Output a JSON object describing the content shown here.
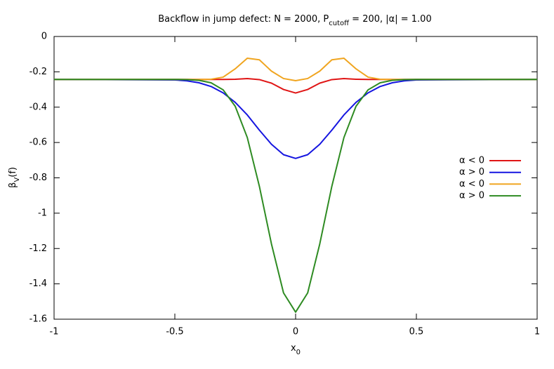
{
  "chart_data": {
    "type": "line",
    "title": [
      {
        "text": "Backflow in jump defect: N = 2000, P"
      },
      {
        "text": "cutoff",
        "sub": true
      },
      {
        "text": " = 200, |α| = 1.00"
      }
    ],
    "xlabel": [
      {
        "text": "x"
      },
      {
        "text": "0",
        "sub": true
      }
    ],
    "ylabel": [
      {
        "text": "β"
      },
      {
        "text": "V",
        "sub": true
      },
      {
        "text": "(f)"
      }
    ],
    "x": [
      -1,
      -0.5,
      -0.45,
      -0.4,
      -0.35,
      -0.3,
      -0.25,
      -0.2,
      -0.15,
      -0.1,
      -0.05,
      0,
      0.05,
      0.1,
      0.15,
      0.2,
      0.25,
      0.3,
      0.35,
      0.4,
      0.45,
      0.5,
      1
    ],
    "series": [
      {
        "name": "α < 0",
        "color": "#e01515",
        "values": [
          -0.243,
          -0.243,
          -0.243,
          -0.243,
          -0.243,
          -0.243,
          -0.242,
          -0.238,
          -0.244,
          -0.264,
          -0.3,
          -0.32,
          -0.3,
          -0.264,
          -0.244,
          -0.238,
          -0.242,
          -0.243,
          -0.243,
          -0.243,
          -0.243,
          -0.243,
          -0.243
        ]
      },
      {
        "name": "α > 0",
        "color": "#1515e0",
        "values": [
          -0.243,
          -0.246,
          -0.251,
          -0.262,
          -0.283,
          -0.319,
          -0.373,
          -0.444,
          -0.53,
          -0.61,
          -0.669,
          -0.69,
          -0.669,
          -0.61,
          -0.53,
          -0.444,
          -0.373,
          -0.319,
          -0.283,
          -0.262,
          -0.251,
          -0.246,
          -0.243
        ]
      },
      {
        "name": "α < 0",
        "color": "#f0a520",
        "values": [
          -0.243,
          -0.243,
          -0.243,
          -0.243,
          -0.242,
          -0.23,
          -0.183,
          -0.123,
          -0.132,
          -0.196,
          -0.238,
          -0.25,
          -0.238,
          -0.196,
          -0.132,
          -0.123,
          -0.183,
          -0.23,
          -0.242,
          -0.243,
          -0.243,
          -0.243,
          -0.243
        ]
      },
      {
        "name": "α > 0",
        "color": "#2e8b22",
        "values": [
          -0.243,
          -0.243,
          -0.244,
          -0.248,
          -0.262,
          -0.302,
          -0.395,
          -0.572,
          -0.848,
          -1.174,
          -1.451,
          -1.56,
          -1.451,
          -1.174,
          -0.848,
          -0.572,
          -0.395,
          -0.302,
          -0.262,
          -0.248,
          -0.244,
          -0.243,
          -0.243
        ]
      }
    ],
    "xlim": [
      -1,
      1
    ],
    "xticks": [
      -1,
      -0.5,
      0,
      0.5,
      1
    ],
    "ylim": [
      -1.6,
      0
    ],
    "yticks": [
      0,
      -0.2,
      -0.4,
      -0.6,
      -0.8,
      -1,
      -1.2,
      -1.4,
      -1.6
    ],
    "grid": false,
    "legend": "right"
  }
}
